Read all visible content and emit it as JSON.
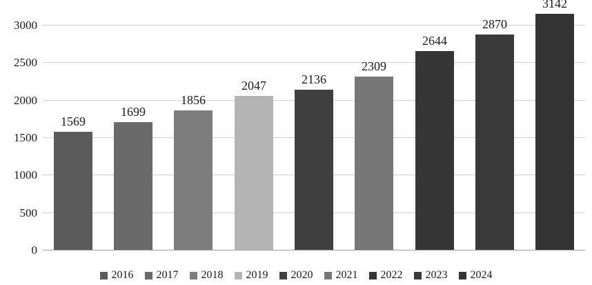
{
  "chart_data": {
    "type": "bar",
    "title": "",
    "xlabel": "",
    "ylabel": "",
    "categories": [
      "2016",
      "2017",
      "2018",
      "2019",
      "2020",
      "2021",
      "2022",
      "2023",
      "2024"
    ],
    "values": [
      1569,
      1699,
      1856,
      2047,
      2136,
      2309,
      2644,
      2870,
      3142
    ],
    "bar_colors": [
      "#5b5b5b",
      "#6a6a6a",
      "#7d7d7d",
      "#b4b4b4",
      "#3f3f3f",
      "#777777",
      "#363636",
      "#3a3a3a",
      "#333333"
    ],
    "value_labels": [
      "1569",
      "1699",
      "1856",
      "2047",
      "2136",
      "2309",
      "2644",
      "2870",
      "3142"
    ],
    "yticks": [
      0,
      500,
      1000,
      1500,
      2000,
      2500,
      3000
    ],
    "ytick_labels": [
      "0",
      "500",
      "1000",
      "1500",
      "2000",
      "2500",
      "3000"
    ],
    "ylim": [
      0,
      3200
    ],
    "grid": true,
    "legend_position": "bottom",
    "legend_labels": [
      "2016",
      "2017",
      "2018",
      "2019",
      "2020",
      "2021",
      "2022",
      "2023",
      "2024"
    ],
    "colors": {
      "gridline": "#cfcfcf",
      "baseline": "#9e9e9e",
      "text": "#1a1a1a",
      "background": "#ffffff"
    }
  }
}
